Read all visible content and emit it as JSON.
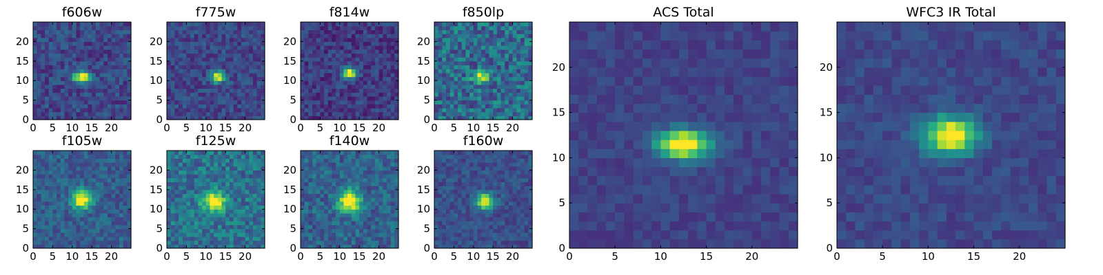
{
  "chart_data": [
    {
      "type": "heatmap",
      "title": "f606w",
      "cmap": "viridis",
      "xlim": [
        0,
        25
      ],
      "ylim": [
        0,
        25
      ],
      "xticks": [
        0,
        5,
        10,
        15,
        20
      ],
      "yticks": [
        0,
        5,
        10,
        15,
        20
      ],
      "xticklabels": [
        "0",
        "5",
        "10",
        "15",
        "20"
      ],
      "yticklabels": [
        "0",
        "5",
        "10",
        "15",
        "20"
      ],
      "peak": {
        "x": 12.5,
        "y": 11,
        "sx": 1.6,
        "sy": 0.9,
        "amp": 0.9
      },
      "noise": 0.13,
      "bg": 0.22,
      "seed": 11
    },
    {
      "type": "heatmap",
      "title": "f775w",
      "cmap": "viridis",
      "xlim": [
        0,
        25
      ],
      "ylim": [
        0,
        25
      ],
      "xticks": [
        0,
        5,
        10,
        15,
        20
      ],
      "yticks": [
        0,
        5,
        10,
        15,
        20
      ],
      "xticklabels": [
        "0",
        "5",
        "10",
        "15",
        "20"
      ],
      "yticklabels": [
        "0",
        "5",
        "10",
        "15",
        "20"
      ],
      "peak": {
        "x": 13,
        "y": 11,
        "sx": 1.2,
        "sy": 1.0,
        "amp": 0.85
      },
      "noise": 0.12,
      "bg": 0.22,
      "seed": 23
    },
    {
      "type": "heatmap",
      "title": "f814w",
      "cmap": "viridis",
      "xlim": [
        0,
        25
      ],
      "ylim": [
        0,
        25
      ],
      "xticks": [
        0,
        5,
        10,
        15,
        20
      ],
      "yticks": [
        0,
        5,
        10,
        15,
        20
      ],
      "xticklabels": [
        "0",
        "5",
        "10",
        "15",
        "20"
      ],
      "yticklabels": [
        "0",
        "5",
        "10",
        "15",
        "20"
      ],
      "peak": {
        "x": 12.5,
        "y": 12,
        "sx": 1.3,
        "sy": 1.0,
        "amp": 0.85
      },
      "noise": 0.12,
      "bg": 0.18,
      "seed": 37
    },
    {
      "type": "heatmap",
      "title": "f850lp",
      "cmap": "viridis",
      "xlim": [
        0,
        25
      ],
      "ylim": [
        0,
        25
      ],
      "xticks": [
        0,
        5,
        10,
        15,
        20
      ],
      "yticks": [
        0,
        5,
        10,
        15,
        20
      ],
      "xticklabels": [
        "0",
        "5",
        "10",
        "15",
        "20"
      ],
      "yticklabels": [
        "0",
        "5",
        "10",
        "15",
        "20"
      ],
      "peak": {
        "x": 12,
        "y": 11,
        "sx": 1.5,
        "sy": 1.0,
        "amp": 0.6
      },
      "noise": 0.2,
      "bg": 0.35,
      "seed": 41
    },
    {
      "type": "heatmap",
      "title": "f105w",
      "cmap": "viridis",
      "xlim": [
        0,
        25
      ],
      "ylim": [
        0,
        25
      ],
      "xticks": [
        0,
        5,
        10,
        15,
        20
      ],
      "yticks": [
        0,
        5,
        10,
        15,
        20
      ],
      "xticklabels": [
        "0",
        "5",
        "10",
        "15",
        "20"
      ],
      "yticklabels": [
        "0",
        "5",
        "10",
        "15",
        "20"
      ],
      "peak": {
        "x": 12.5,
        "y": 12.5,
        "sx": 1.8,
        "sy": 1.6,
        "amp": 0.8
      },
      "noise": 0.12,
      "bg": 0.3,
      "seed": 53
    },
    {
      "type": "heatmap",
      "title": "f125w",
      "cmap": "viridis",
      "xlim": [
        0,
        25
      ],
      "ylim": [
        0,
        25
      ],
      "xticks": [
        0,
        5,
        10,
        15,
        20
      ],
      "yticks": [
        0,
        5,
        10,
        15,
        20
      ],
      "xticklabels": [
        "0",
        "5",
        "10",
        "15",
        "20"
      ],
      "yticklabels": [
        "0",
        "5",
        "10",
        "15",
        "20"
      ],
      "peak": {
        "x": 12,
        "y": 12,
        "sx": 2.0,
        "sy": 1.8,
        "amp": 0.7
      },
      "noise": 0.16,
      "bg": 0.38,
      "seed": 67
    },
    {
      "type": "heatmap",
      "title": "f140w",
      "cmap": "viridis",
      "xlim": [
        0,
        25
      ],
      "ylim": [
        0,
        25
      ],
      "xticks": [
        0,
        5,
        10,
        15,
        20
      ],
      "yticks": [
        0,
        5,
        10,
        15,
        20
      ],
      "xticklabels": [
        "0",
        "5",
        "10",
        "15",
        "20"
      ],
      "yticklabels": [
        "0",
        "5",
        "10",
        "15",
        "20"
      ],
      "peak": {
        "x": 12.5,
        "y": 12,
        "sx": 2.0,
        "sy": 2.0,
        "amp": 0.8
      },
      "noise": 0.14,
      "bg": 0.32,
      "seed": 79
    },
    {
      "type": "heatmap",
      "title": "f160w",
      "cmap": "viridis",
      "xlim": [
        0,
        25
      ],
      "ylim": [
        0,
        25
      ],
      "xticks": [
        0,
        5,
        10,
        15,
        20
      ],
      "yticks": [
        0,
        5,
        10,
        15,
        20
      ],
      "xticklabels": [
        "0",
        "5",
        "10",
        "15",
        "20"
      ],
      "yticklabels": [
        "0",
        "5",
        "10",
        "15",
        "20"
      ],
      "peak": {
        "x": 13,
        "y": 12,
        "sx": 1.5,
        "sy": 1.4,
        "amp": 0.85
      },
      "noise": 0.1,
      "bg": 0.25,
      "seed": 83
    },
    {
      "type": "heatmap",
      "title": "ACS Total",
      "cmap": "viridis",
      "xlim": [
        0,
        25
      ],
      "ylim": [
        0,
        25
      ],
      "xticks": [
        0,
        5,
        10,
        15,
        20
      ],
      "yticks": [
        0,
        5,
        10,
        15,
        20
      ],
      "xticklabels": [
        "0",
        "5",
        "10",
        "15",
        "20"
      ],
      "yticklabels": [
        "0",
        "5",
        "10",
        "15",
        "20"
      ],
      "peak": {
        "x": 12.5,
        "y": 11.5,
        "sx": 2.0,
        "sy": 1.1,
        "amp": 0.95
      },
      "noise": 0.06,
      "bg": 0.2,
      "seed": 97
    },
    {
      "type": "heatmap",
      "title": "WFC3 IR Total",
      "cmap": "viridis",
      "xlim": [
        0,
        25
      ],
      "ylim": [
        0,
        25
      ],
      "xticks": [
        0,
        5,
        10,
        15,
        20
      ],
      "yticks": [
        0,
        5,
        10,
        15,
        20
      ],
      "xticklabels": [
        "0",
        "5",
        "10",
        "15",
        "20"
      ],
      "yticklabels": [
        "0",
        "5",
        "10",
        "15",
        "20"
      ],
      "peak": {
        "x": 12.5,
        "y": 12.5,
        "sx": 2.0,
        "sy": 1.4,
        "amp": 0.9
      },
      "noise": 0.07,
      "bg": 0.22,
      "seed": 101
    }
  ]
}
